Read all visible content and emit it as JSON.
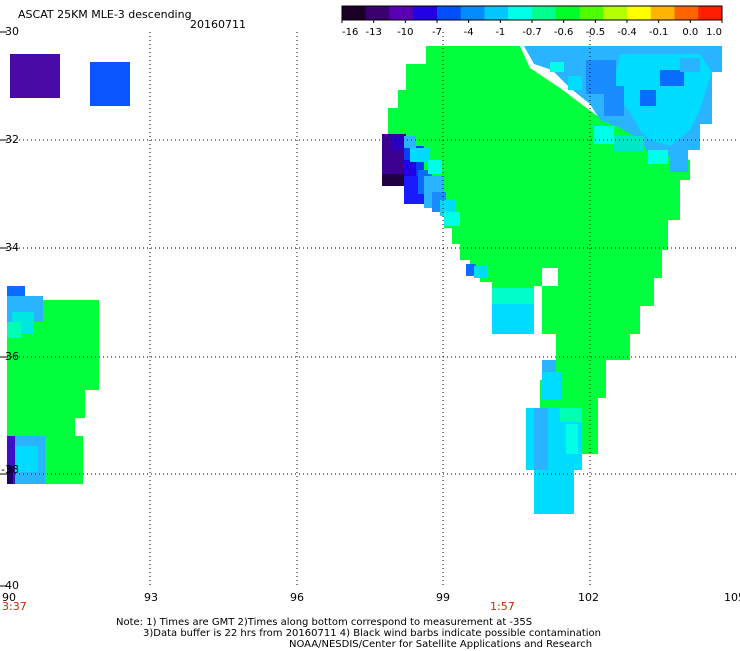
{
  "title": "ASCAT 25KM MLE-3 descending",
  "date": "20160711",
  "colorbar": {
    "ticks": [
      "-16",
      "-13",
      "-10",
      "-7",
      "-4",
      "-1",
      "-0.7",
      "-0.6",
      "-0.5",
      "-0.4",
      "-0.1",
      "0.0",
      "1.0"
    ],
    "colors": [
      "#1a0026",
      "#3a0070",
      "#5a00b4",
      "#2200e6",
      "#0050ff",
      "#008cff",
      "#00c8ff",
      "#00ffe6",
      "#00ff8c",
      "#00ff28",
      "#50ff00",
      "#b4ff00",
      "#ffff00",
      "#ffb400",
      "#ff6400",
      "#ff1e00"
    ]
  },
  "map": {
    "lat_labels": [
      "-30",
      "-32",
      "-34",
      "-36",
      "-38",
      "-40"
    ],
    "lon_labels": [
      "90",
      "93",
      "96",
      "99",
      "102",
      "105"
    ],
    "lat_range": [
      -40,
      -30
    ],
    "lon_range": [
      90,
      105
    ]
  },
  "time_labels": {
    "left": "3:37",
    "center": "1:57"
  },
  "footer": {
    "line1": "Note: 1) Times are GMT 2)Times along bottom correspond to measurement at -35S",
    "line2": "3)Data buffer is 22 hrs from 20160711 4) Black wind barbs indicate possible contamination",
    "line3": "NOAA/NESDIS/Center for Satellite Applications and Research"
  },
  "legend_squares": {
    "left_color": "#4a0aa8",
    "right_color": "#0a55ff"
  },
  "colors": {
    "green": "#00ff3c",
    "green2": "#1eff46",
    "cyan": "#00dcff",
    "lightblue": "#2ab4ff",
    "blue": "#0a3cff",
    "purple": "#3c0090",
    "darkpurple": "#200040"
  }
}
